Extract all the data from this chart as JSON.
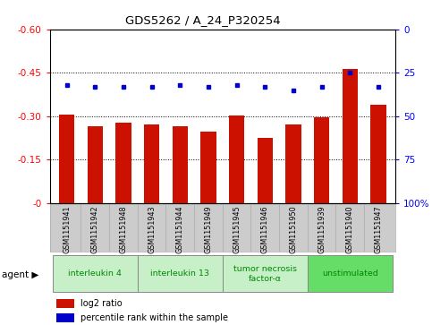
{
  "title": "GDS5262 / A_24_P320254",
  "samples": [
    "GSM1151941",
    "GSM1151942",
    "GSM1151948",
    "GSM1151943",
    "GSM1151944",
    "GSM1151949",
    "GSM1151945",
    "GSM1151946",
    "GSM1151950",
    "GSM1151939",
    "GSM1151940",
    "GSM1151947"
  ],
  "log2_ratios": [
    -0.305,
    -0.265,
    -0.278,
    -0.27,
    -0.265,
    -0.248,
    -0.302,
    -0.225,
    -0.272,
    -0.295,
    -0.463,
    -0.338
  ],
  "percentile_ranks": [
    32,
    33,
    33,
    33,
    32,
    33,
    32,
    33,
    35,
    33,
    25,
    33
  ],
  "agents": [
    {
      "label": "interleukin 4",
      "indices": [
        0,
        1,
        2
      ],
      "color": "#c8f0c8"
    },
    {
      "label": "interleukin 13",
      "indices": [
        3,
        4,
        5
      ],
      "color": "#c8f0c8"
    },
    {
      "label": "tumor necrosis\nfactor-α",
      "indices": [
        6,
        7,
        8
      ],
      "color": "#c8f0c8"
    },
    {
      "label": "unstimulated",
      "indices": [
        9,
        10,
        11
      ],
      "color": "#66dd66"
    }
  ],
  "ymin": -0.6,
  "ymax": 0.0,
  "yticks": [
    0.0,
    -0.15,
    -0.3,
    -0.45,
    -0.6
  ],
  "ytick_labels": [
    "-0",
    "-0.15",
    "-0.30",
    "-0.45",
    "-0.60"
  ],
  "right_ytick_pcts": [
    100,
    75,
    50,
    25,
    0
  ],
  "right_ytick_labels": [
    "100%",
    "75",
    "50",
    "25",
    "0"
  ],
  "bar_color": "#cc1100",
  "dot_color": "#0000cc",
  "bar_width": 0.55,
  "bg_color": "#ffffff",
  "label_area_color": "#cccccc",
  "agent_text_color": "#008800",
  "legend_items": [
    "log2 ratio",
    "percentile rank within the sample"
  ],
  "legend_colors": [
    "#cc1100",
    "#0000cc"
  ]
}
